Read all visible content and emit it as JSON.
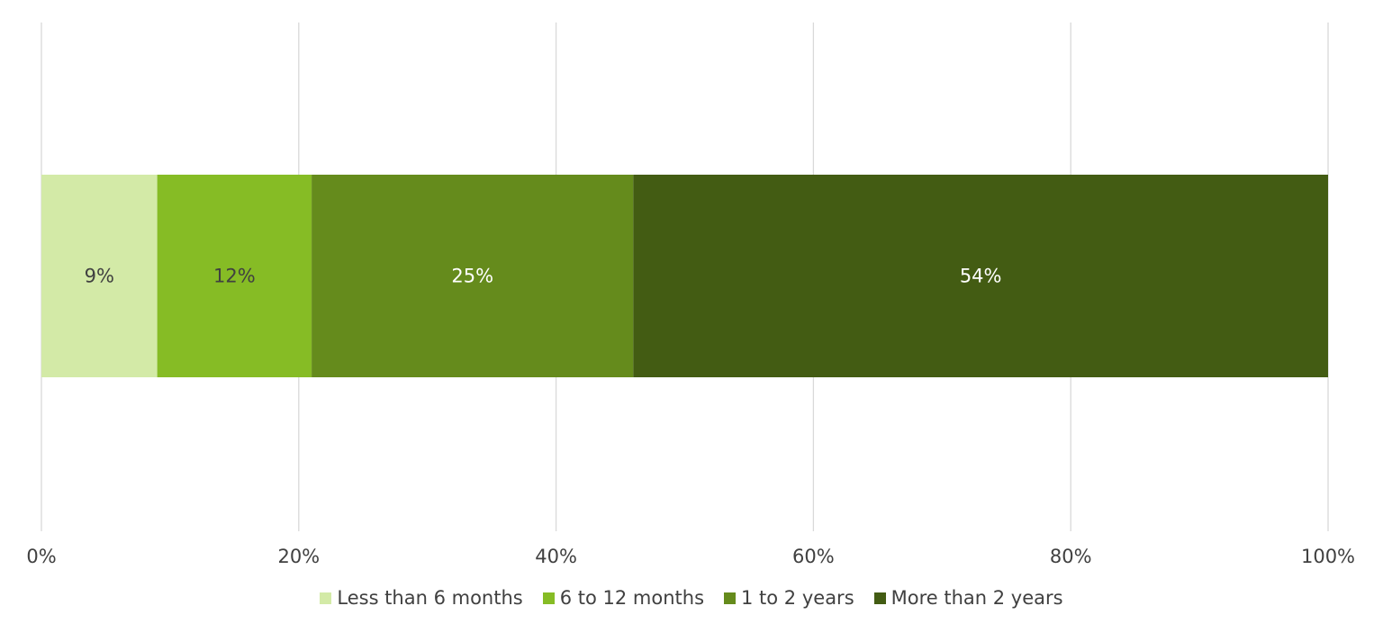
{
  "chart_data": {
    "type": "bar",
    "orientation": "horizontal",
    "stacked": "percent",
    "title": "",
    "xlabel": "",
    "ylabel": "",
    "categories": [
      ""
    ],
    "series": [
      {
        "name": "Less than 6 months",
        "values": [
          9
        ],
        "label": "9%",
        "color": "#d3eaa7",
        "label_color": "#404040"
      },
      {
        "name": "6 to 12 months",
        "values": [
          12
        ],
        "label": "12%",
        "color": "#86bc25",
        "label_color": "#404040"
      },
      {
        "name": "1 to 2 years",
        "values": [
          25
        ],
        "label": "25%",
        "color": "#658b1c",
        "label_color": "#ffffff"
      },
      {
        "name": "More than 2 years",
        "values": [
          54
        ],
        "label": "54%",
        "color": "#435c13",
        "label_color": "#ffffff"
      }
    ],
    "xlim": [
      0,
      100
    ],
    "x_ticks": [
      0,
      20,
      40,
      60,
      80,
      100
    ],
    "x_tick_labels": [
      "0%",
      "20%",
      "40%",
      "60%",
      "80%",
      "100%"
    ],
    "grid": "vertical",
    "legend_position": "bottom"
  }
}
